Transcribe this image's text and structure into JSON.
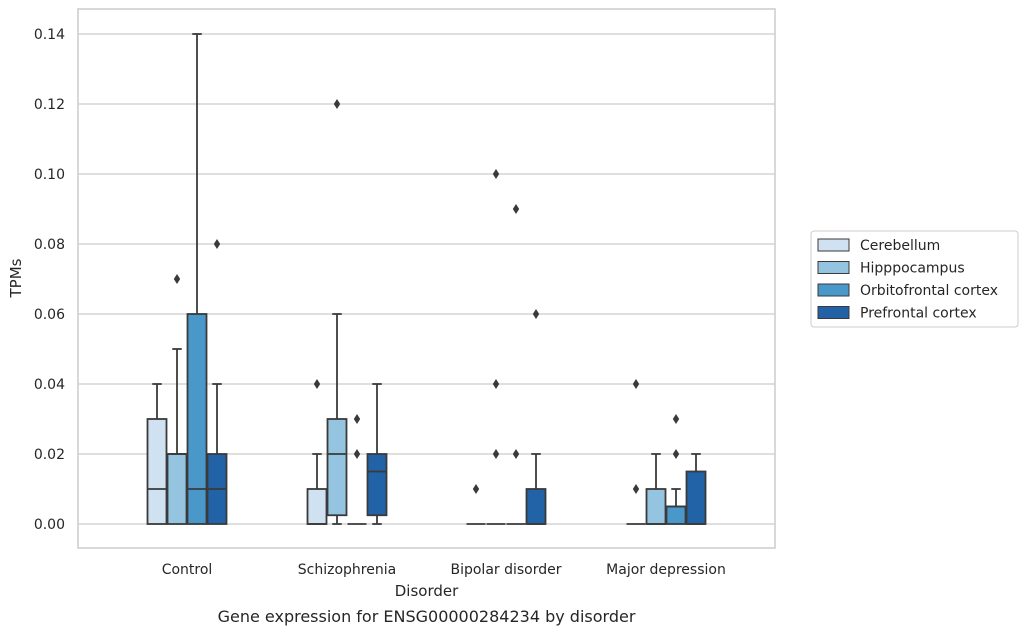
{
  "chart_data": {
    "type": "box",
    "title": "",
    "caption": "Gene expression for ENSG00000284234 by disorder",
    "xlabel": "Disorder",
    "ylabel": "TPMs",
    "ylim": [
      -0.007,
      0.147
    ],
    "yticks": [
      "0.00",
      "0.02",
      "0.04",
      "0.06",
      "0.08",
      "0.10",
      "0.12",
      "0.14"
    ],
    "grid": true,
    "legend_position": "right",
    "categories": [
      "Control",
      "Schizophrenia",
      "Bipolar disorder",
      "Major depression"
    ],
    "series": [
      {
        "name": "Cerebellum",
        "color": "#d0e1f2",
        "boxes": [
          {
            "q1": 0.0,
            "median": 0.01,
            "q3": 0.03,
            "whisker_low": 0.0,
            "whisker_high": 0.04,
            "outliers": []
          },
          {
            "q1": 0.0,
            "median": 0.0,
            "q3": 0.01,
            "whisker_low": 0.0,
            "whisker_high": 0.02,
            "outliers": [
              0.04
            ]
          },
          {
            "q1": 0.0,
            "median": 0.0,
            "q3": 0.0,
            "whisker_low": 0.0,
            "whisker_high": 0.0,
            "outliers": [
              0.01
            ]
          },
          {
            "q1": 0.0,
            "median": 0.0,
            "q3": 0.0,
            "whisker_low": 0.0,
            "whisker_high": 0.0,
            "outliers": [
              0.01,
              0.04
            ]
          }
        ]
      },
      {
        "name": "Hipppocampus",
        "color": "#94c4df",
        "boxes": [
          {
            "q1": 0.0,
            "median": 0.02,
            "q3": 0.02,
            "whisker_low": 0.0,
            "whisker_high": 0.05,
            "outliers": [
              0.07
            ]
          },
          {
            "q1": 0.0025,
            "median": 0.02,
            "q3": 0.03,
            "whisker_low": 0.0,
            "whisker_high": 0.06,
            "outliers": [
              0.12
            ]
          },
          {
            "q1": 0.0,
            "median": 0.0,
            "q3": 0.0,
            "whisker_low": 0.0,
            "whisker_high": 0.0,
            "outliers": [
              0.02,
              0.04,
              0.1
            ]
          },
          {
            "q1": 0.0,
            "median": 0.0,
            "q3": 0.01,
            "whisker_low": 0.0,
            "whisker_high": 0.02,
            "outliers": []
          }
        ]
      },
      {
        "name": "Orbitofrontal cortex",
        "color": "#4a98c9",
        "boxes": [
          {
            "q1": 0.0,
            "median": 0.01,
            "q3": 0.06,
            "whisker_low": 0.0,
            "whisker_high": 0.14,
            "outliers": []
          },
          {
            "q1": 0.0,
            "median": 0.0,
            "q3": 0.0,
            "whisker_low": 0.0,
            "whisker_high": 0.0,
            "outliers": [
              0.02,
              0.03
            ]
          },
          {
            "q1": 0.0,
            "median": 0.0,
            "q3": 0.0,
            "whisker_low": 0.0,
            "whisker_high": 0.0,
            "outliers": [
              0.02,
              0.09
            ]
          },
          {
            "q1": 0.0,
            "median": 0.005,
            "q3": 0.005,
            "whisker_low": 0.0,
            "whisker_high": 0.01,
            "outliers": [
              0.02,
              0.03
            ]
          }
        ]
      },
      {
        "name": "Prefrontal cortex",
        "color": "#2263a8",
        "boxes": [
          {
            "q1": 0.0,
            "median": 0.01,
            "q3": 0.02,
            "whisker_low": 0.0,
            "whisker_high": 0.04,
            "outliers": [
              0.08
            ]
          },
          {
            "q1": 0.0025,
            "median": 0.015,
            "q3": 0.02,
            "whisker_low": 0.0,
            "whisker_high": 0.04,
            "outliers": []
          },
          {
            "q1": 0.0,
            "median": 0.0,
            "q3": 0.01,
            "whisker_low": 0.0,
            "whisker_high": 0.02,
            "outliers": [
              0.06
            ]
          },
          {
            "q1": 0.0,
            "median": 0.0,
            "q3": 0.015,
            "whisker_low": 0.0,
            "whisker_high": 0.02,
            "outliers": []
          }
        ]
      }
    ]
  }
}
